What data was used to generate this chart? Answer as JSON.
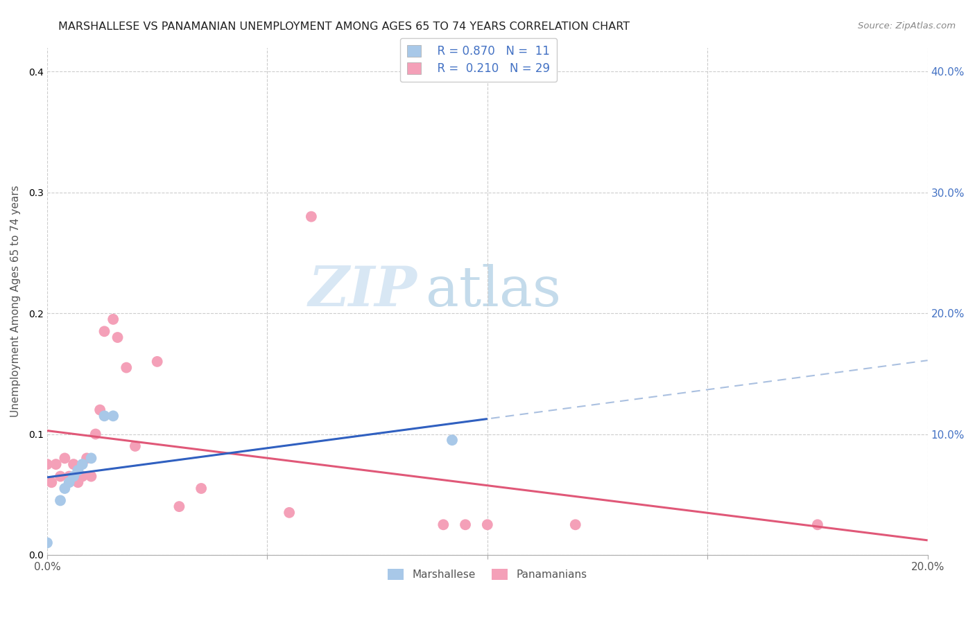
{
  "title": "MARSHALLESE VS PANAMANIAN UNEMPLOYMENT AMONG AGES 65 TO 74 YEARS CORRELATION CHART",
  "source": "Source: ZipAtlas.com",
  "xlabel": "",
  "ylabel": "Unemployment Among Ages 65 to 74 years",
  "xlim": [
    0.0,
    0.2
  ],
  "ylim": [
    0.0,
    0.42
  ],
  "xticks": [
    0.0,
    0.05,
    0.1,
    0.15,
    0.2
  ],
  "yticks": [
    0.0,
    0.1,
    0.2,
    0.3,
    0.4
  ],
  "xtick_labels": [
    "0.0%",
    "",
    "",
    "",
    "20.0%"
  ],
  "ytick_labels": [
    "",
    "10.0%",
    "20.0%",
    "30.0%",
    "40.0%"
  ],
  "grid_color": "#cccccc",
  "background_color": "#ffffff",
  "marshallese_color": "#a8c8e8",
  "panamanian_color": "#f4a0b8",
  "marshallese_line_color": "#3060c0",
  "panamanian_line_color": "#e05878",
  "marshallese_dashed_color": "#aac0e0",
  "legend_R_marshallese": "0.870",
  "legend_N_marshallese": "11",
  "legend_R_panamanian": "0.210",
  "legend_N_panamanian": "29",
  "watermark_zip": "ZIP",
  "watermark_atlas": "atlas",
  "marshallese_x": [
    0.0,
    0.003,
    0.004,
    0.005,
    0.006,
    0.007,
    0.008,
    0.01,
    0.013,
    0.015,
    0.092
  ],
  "marshallese_y": [
    0.01,
    0.045,
    0.055,
    0.06,
    0.065,
    0.07,
    0.075,
    0.08,
    0.115,
    0.115,
    0.095
  ],
  "panamanian_x": [
    0.0,
    0.001,
    0.002,
    0.003,
    0.004,
    0.005,
    0.006,
    0.007,
    0.007,
    0.008,
    0.009,
    0.01,
    0.011,
    0.012,
    0.013,
    0.015,
    0.016,
    0.018,
    0.02,
    0.025,
    0.03,
    0.035,
    0.055,
    0.06,
    0.09,
    0.095,
    0.1,
    0.12,
    0.175
  ],
  "panamanian_y": [
    0.075,
    0.06,
    0.075,
    0.065,
    0.08,
    0.065,
    0.075,
    0.06,
    0.065,
    0.065,
    0.08,
    0.065,
    0.1,
    0.12,
    0.185,
    0.195,
    0.18,
    0.155,
    0.09,
    0.16,
    0.04,
    0.055,
    0.035,
    0.28,
    0.025,
    0.025,
    0.025,
    0.025,
    0.025
  ],
  "marker_size": 130
}
